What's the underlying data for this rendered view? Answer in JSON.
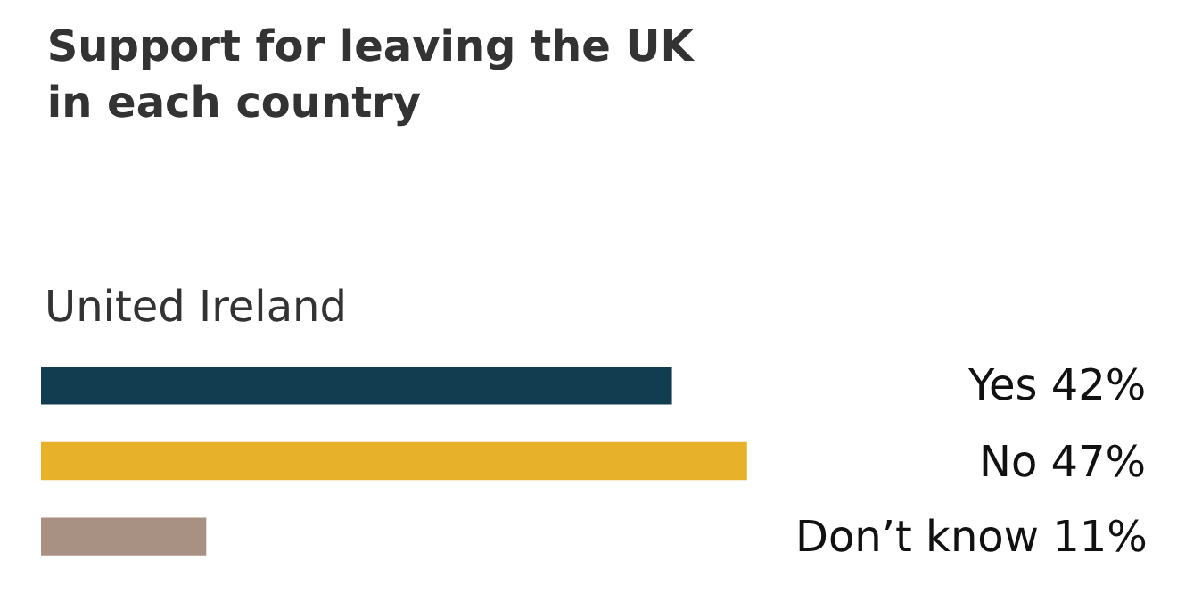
{
  "chart_data": {
    "type": "bar",
    "orientation": "horizontal",
    "title": "Support for leaving the UK\nin each country",
    "subtitle": "United Ireland",
    "categories": [
      null,
      null,
      null
    ],
    "values": [
      42,
      47,
      11
    ],
    "colors": [
      "#123d50",
      "#e8b12a",
      "#a89082"
    ],
    "value_labels": [
      "Yes 42%",
      "No 47%",
      "Don’t know 11%"
    ],
    "legend": false
  }
}
